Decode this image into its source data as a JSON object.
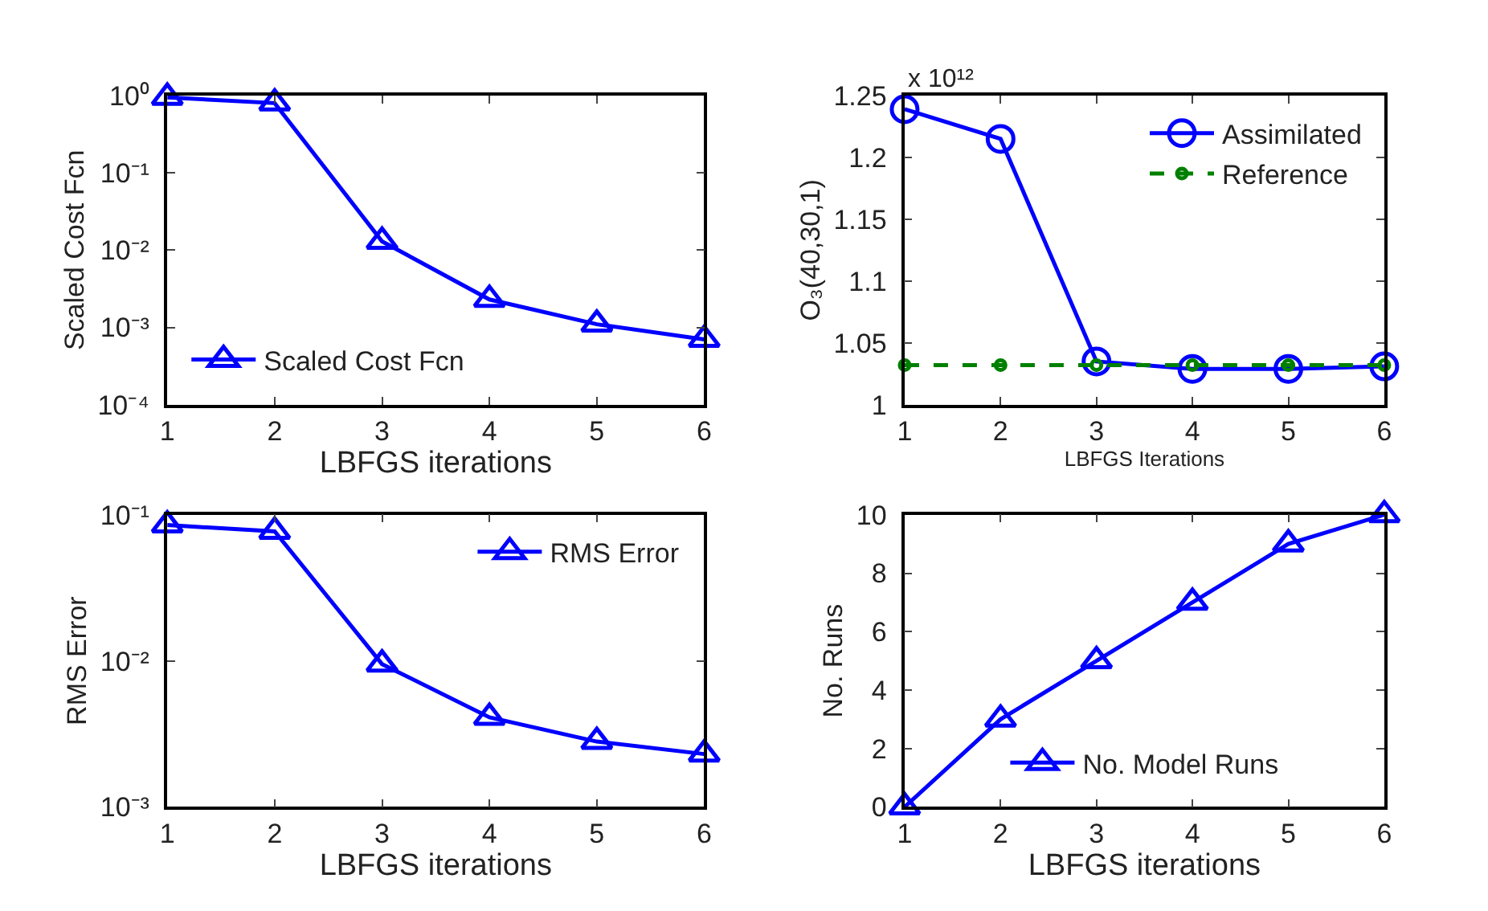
{
  "chart_data": [
    {
      "type": "line",
      "xlabel": "LBFGS iterations",
      "ylabel": "Scaled Cost Fcn",
      "x": [
        1,
        2,
        3,
        4,
        5,
        6
      ],
      "xlim": [
        1,
        6
      ],
      "xticks": [
        1,
        2,
        3,
        4,
        5,
        6
      ],
      "log": "y",
      "ylim": [
        0.0001,
        1
      ],
      "yticks": [
        {
          "value": 0.0001,
          "label": "10⁻⁴"
        },
        {
          "value": 0.001,
          "label": "10⁻³"
        },
        {
          "value": 0.01,
          "label": "10⁻²"
        },
        {
          "value": 0.1,
          "label": "10⁻¹"
        },
        {
          "value": 1,
          "label": "10⁰"
        }
      ],
      "legend": "bottom left",
      "marker": "triangle",
      "line_style": "solid",
      "series": [
        {
          "name": "Scaled Cost Fcn",
          "color": "#0000ff",
          "values": [
            0.95,
            0.8,
            0.013,
            0.0023,
            0.0011,
            0.0007
          ]
        }
      ]
    },
    {
      "type": "line",
      "xlabel": "LBFGS Iterations",
      "ylabel": "O₃(40,30,1)",
      "annotations": [
        "x 10¹²"
      ],
      "x": [
        1,
        2,
        3,
        4,
        5,
        6
      ],
      "xlim": [
        1,
        6
      ],
      "xticks": [
        1,
        2,
        3,
        4,
        5,
        6
      ],
      "ylim": [
        1,
        1.25
      ],
      "yticks": [
        1,
        1.05,
        1.1,
        1.15,
        1.2,
        1.25
      ],
      "legend": "top right",
      "series": [
        {
          "name": "Assimilated",
          "color": "#0000ff",
          "marker": "circle",
          "line_style": "solid",
          "values": [
            1.239,
            1.215,
            1.035,
            1.029,
            1.029,
            1.031
          ]
        },
        {
          "name": "Reference",
          "color": "#008000",
          "marker": "circle",
          "line_style": "dashed",
          "values": [
            1.032,
            1.032,
            1.032,
            1.032,
            1.032,
            1.032
          ]
        }
      ]
    },
    {
      "type": "line",
      "xlabel": "LBFGS iterations",
      "ylabel": "RMS Error",
      "x": [
        1,
        2,
        3,
        4,
        5,
        6
      ],
      "xlim": [
        1,
        6
      ],
      "xticks": [
        1,
        2,
        3,
        4,
        5,
        6
      ],
      "log": "y",
      "ylim": [
        0.001,
        0.1
      ],
      "yticks": [
        {
          "value": 0.001,
          "label": "10⁻³"
        },
        {
          "value": 0.01,
          "label": "10⁻²"
        },
        {
          "value": 0.1,
          "label": "10⁻¹"
        }
      ],
      "legend": "top right",
      "marker": "triangle",
      "line_style": "solid",
      "series": [
        {
          "name": "RMS Error",
          "color": "#0000ff",
          "values": [
            0.085,
            0.077,
            0.0095,
            0.0041,
            0.0028,
            0.0023
          ]
        }
      ]
    },
    {
      "type": "line",
      "xlabel": "LBFGS iterations",
      "ylabel": "No. Runs",
      "x": [
        1,
        2,
        3,
        4,
        5,
        6
      ],
      "xlim": [
        1,
        6
      ],
      "xticks": [
        1,
        2,
        3,
        4,
        5,
        6
      ],
      "ylim": [
        0,
        10
      ],
      "yticks": [
        0,
        2,
        4,
        6,
        8,
        10
      ],
      "legend": "bottom",
      "marker": "triangle",
      "line_style": "solid",
      "series": [
        {
          "name": "No. Model Runs",
          "color": "#0000ff",
          "values": [
            0,
            3,
            5,
            7,
            9,
            10
          ]
        }
      ]
    }
  ]
}
